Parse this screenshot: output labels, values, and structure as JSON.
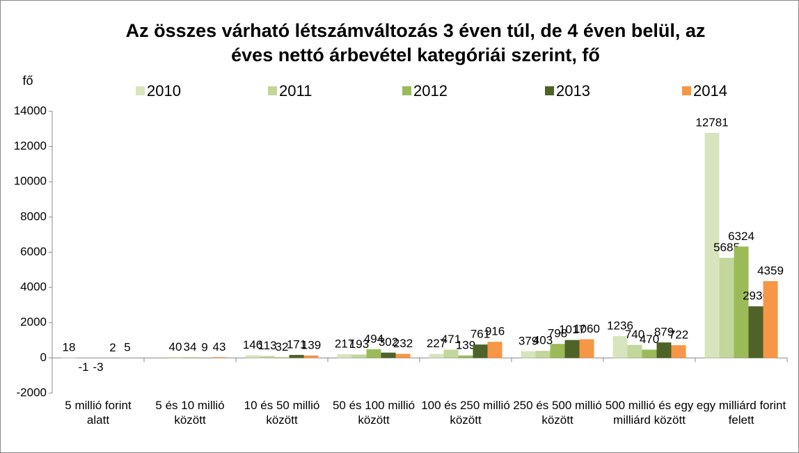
{
  "chart_data": {
    "type": "bar",
    "title": "Az összes  várható létszámváltozás 3 éven túl, de 4 éven belül, az éves nettó árbevétel kategóriái szerint, fő",
    "y_label": "fő",
    "categories": [
      "5 millió forint alatt",
      "5 és 10 millió között",
      "10 és 50 millió között",
      "50 és 100 millió között",
      "100 és 250 millió között",
      "250 és 500 millió között",
      "500 millió és egy milliárd között",
      "egy milliárd forint felett"
    ],
    "series": [
      {
        "name": "2010",
        "color": "#d7e4bd",
        "values": [
          18,
          null,
          146,
          217,
          227,
          379,
          1236,
          12781
        ]
      },
      {
        "name": "2011",
        "color": "#c3d69b",
        "values": [
          -1,
          40,
          113,
          193,
          471,
          403,
          740,
          5685
        ]
      },
      {
        "name": "2012",
        "color": "#9bbb59",
        "values": [
          -3,
          34,
          32,
          494,
          139,
          798,
          470,
          6324
        ]
      },
      {
        "name": "2013",
        "color": "#4f6228",
        "values": [
          2,
          9,
          171,
          302,
          761,
          1017,
          879,
          2930
        ]
      },
      {
        "name": "2014",
        "color": "#f79646",
        "values": [
          5,
          43,
          139,
          232,
          916,
          1060,
          722,
          4359
        ]
      }
    ],
    "ylim": [
      -2000,
      14000
    ],
    "yticks": [
      -2000,
      0,
      2000,
      4000,
      6000,
      8000,
      10000,
      12000,
      14000
    ],
    "legend": "top"
  }
}
